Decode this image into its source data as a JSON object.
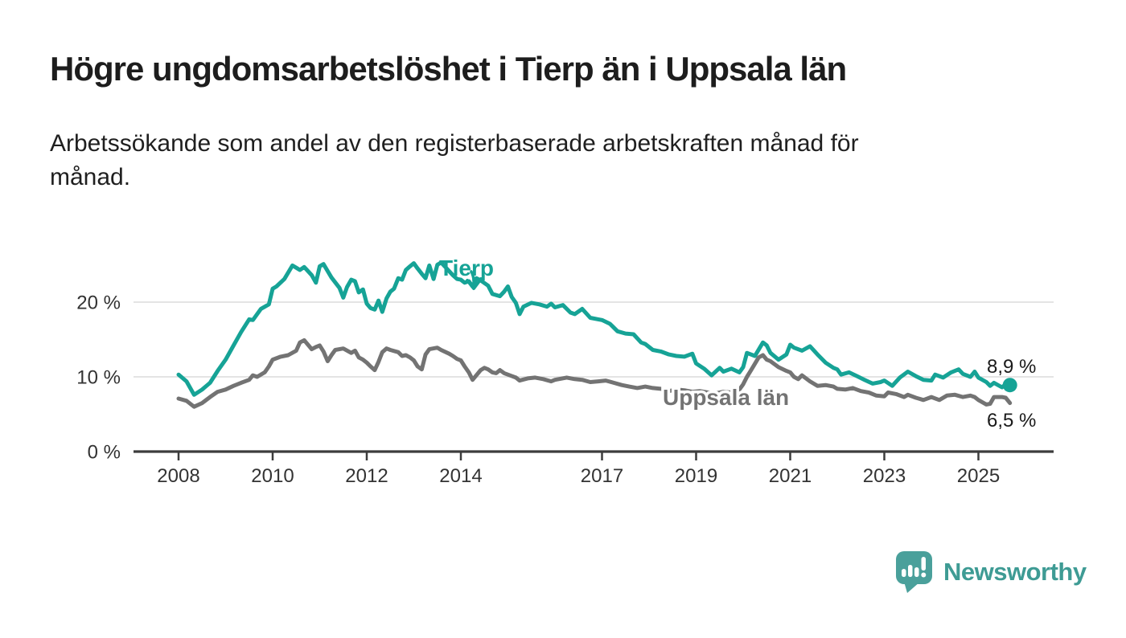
{
  "header": {
    "title": "Högre ungdomsarbetslöshet i Tierp än i Uppsala län",
    "subtitle_line1": "Arbetssökande som andel av den registerbaserade arbetskraften månad för",
    "subtitle_line2": "månad."
  },
  "footer": {
    "brand": "Newsworthy",
    "logo_icon": "newsworthy-speech-bubble-bar-chart-icon"
  },
  "colors": {
    "tierp": "#16A396",
    "uppsala": "#737373",
    "grid": "#DBDBDB",
    "axis": "#3C3C3C",
    "tick_text": "#333333",
    "end_label_text": "#1A1A1A",
    "logo_bubble": "#4AA09B",
    "wordmark": "#3E9B94",
    "background": "#FFFFFF"
  },
  "chart_data": {
    "type": "line",
    "title": "",
    "xlabel": "",
    "ylabel": "",
    "unit": "%",
    "grid": "horizontal-only",
    "legend_position": "inline-labels-on-lines",
    "xlim": [
      2007.05,
      2026.6
    ],
    "ylim": [
      0,
      27
    ],
    "x_ticks": [
      {
        "value": 2008,
        "label": "2008"
      },
      {
        "value": 2010,
        "label": "2010"
      },
      {
        "value": 2012,
        "label": "2012"
      },
      {
        "value": 2014,
        "label": "2014"
      },
      {
        "value": 2017,
        "label": "2017"
      },
      {
        "value": 2019,
        "label": "2019"
      },
      {
        "value": 2021,
        "label": "2021"
      },
      {
        "value": 2023,
        "label": "2023"
      },
      {
        "value": 2025,
        "label": "2025"
      }
    ],
    "y_ticks": [
      {
        "value": 0,
        "label": "0 %"
      },
      {
        "value": 10,
        "label": "10 %"
      },
      {
        "value": 20,
        "label": "20 %"
      }
    ],
    "series": [
      {
        "name": "Tierp",
        "color_key": "tierp",
        "end_label": "8,9 %",
        "end_dot": true,
        "points": [
          [
            2008.0,
            10.3
          ],
          [
            2008.17,
            9.4
          ],
          [
            2008.33,
            7.6
          ],
          [
            2008.5,
            8.3
          ],
          [
            2008.67,
            9.2
          ],
          [
            2008.83,
            10.8
          ],
          [
            2009.0,
            12.3
          ],
          [
            2009.17,
            14.2
          ],
          [
            2009.33,
            16.0
          ],
          [
            2009.5,
            17.7
          ],
          [
            2009.58,
            17.6
          ],
          [
            2009.75,
            19.1
          ],
          [
            2009.92,
            19.7
          ],
          [
            2010.0,
            21.8
          ],
          [
            2010.08,
            22.1
          ],
          [
            2010.25,
            23.1
          ],
          [
            2010.42,
            24.9
          ],
          [
            2010.5,
            24.6
          ],
          [
            2010.58,
            24.3
          ],
          [
            2010.67,
            24.7
          ],
          [
            2010.83,
            23.6
          ],
          [
            2010.92,
            22.6
          ],
          [
            2011.0,
            24.8
          ],
          [
            2011.08,
            25.1
          ],
          [
            2011.25,
            23.3
          ],
          [
            2011.42,
            21.9
          ],
          [
            2011.5,
            20.6
          ],
          [
            2011.58,
            22.0
          ],
          [
            2011.67,
            23.0
          ],
          [
            2011.75,
            22.8
          ],
          [
            2011.83,
            21.3
          ],
          [
            2011.92,
            21.7
          ],
          [
            2012.0,
            19.8
          ],
          [
            2012.08,
            19.2
          ],
          [
            2012.17,
            19.0
          ],
          [
            2012.25,
            20.2
          ],
          [
            2012.33,
            18.7
          ],
          [
            2012.42,
            20.5
          ],
          [
            2012.5,
            21.4
          ],
          [
            2012.58,
            21.8
          ],
          [
            2012.67,
            23.2
          ],
          [
            2012.75,
            23.0
          ],
          [
            2012.83,
            24.3
          ],
          [
            2012.92,
            24.8
          ],
          [
            2013.0,
            25.2
          ],
          [
            2013.08,
            24.5
          ],
          [
            2013.17,
            23.8
          ],
          [
            2013.25,
            23.2
          ],
          [
            2013.33,
            24.9
          ],
          [
            2013.42,
            23.1
          ],
          [
            2013.5,
            25.0
          ],
          [
            2013.58,
            25.3
          ],
          [
            2013.67,
            24.7
          ],
          [
            2013.83,
            23.6
          ],
          [
            2013.92,
            23.1
          ],
          [
            2014.0,
            23.0
          ],
          [
            2014.08,
            22.6
          ],
          [
            2014.17,
            22.8
          ],
          [
            2014.25,
            22.1
          ],
          [
            2014.33,
            23.2
          ],
          [
            2014.42,
            22.9
          ],
          [
            2014.58,
            22.2
          ],
          [
            2014.67,
            21.1
          ],
          [
            2014.83,
            20.8
          ],
          [
            2014.92,
            21.4
          ],
          [
            2015.0,
            22.1
          ],
          [
            2015.08,
            20.7
          ],
          [
            2015.17,
            19.9
          ],
          [
            2015.25,
            18.4
          ],
          [
            2015.33,
            19.4
          ],
          [
            2015.5,
            19.9
          ],
          [
            2015.67,
            19.7
          ],
          [
            2015.83,
            19.4
          ],
          [
            2015.92,
            19.8
          ],
          [
            2016.0,
            19.3
          ],
          [
            2016.17,
            19.6
          ],
          [
            2016.33,
            18.6
          ],
          [
            2016.42,
            18.4
          ],
          [
            2016.58,
            19.1
          ],
          [
            2016.75,
            17.9
          ],
          [
            2016.92,
            17.7
          ],
          [
            2017.0,
            17.6
          ],
          [
            2017.17,
            17.1
          ],
          [
            2017.33,
            16.1
          ],
          [
            2017.5,
            15.8
          ],
          [
            2017.67,
            15.7
          ],
          [
            2017.83,
            14.6
          ],
          [
            2017.92,
            14.4
          ],
          [
            2018.08,
            13.6
          ],
          [
            2018.25,
            13.4
          ],
          [
            2018.42,
            13.0
          ],
          [
            2018.58,
            12.8
          ],
          [
            2018.75,
            12.7
          ],
          [
            2018.92,
            13.1
          ],
          [
            2019.0,
            11.8
          ],
          [
            2019.17,
            11.1
          ],
          [
            2019.33,
            10.2
          ],
          [
            2019.5,
            11.2
          ],
          [
            2019.58,
            10.7
          ],
          [
            2019.75,
            11.1
          ],
          [
            2019.92,
            10.6
          ],
          [
            2020.0,
            11.3
          ],
          [
            2020.08,
            13.2
          ],
          [
            2020.25,
            12.8
          ],
          [
            2020.42,
            14.6
          ],
          [
            2020.5,
            14.2
          ],
          [
            2020.58,
            13.2
          ],
          [
            2020.75,
            12.3
          ],
          [
            2020.92,
            13.0
          ],
          [
            2021.0,
            14.3
          ],
          [
            2021.08,
            13.9
          ],
          [
            2021.25,
            13.5
          ],
          [
            2021.42,
            14.1
          ],
          [
            2021.58,
            13.0
          ],
          [
            2021.75,
            11.9
          ],
          [
            2021.92,
            11.2
          ],
          [
            2022.0,
            11.0
          ],
          [
            2022.08,
            10.3
          ],
          [
            2022.25,
            10.6
          ],
          [
            2022.42,
            10.1
          ],
          [
            2022.58,
            9.6
          ],
          [
            2022.75,
            9.1
          ],
          [
            2022.92,
            9.3
          ],
          [
            2023.0,
            9.5
          ],
          [
            2023.17,
            8.8
          ],
          [
            2023.33,
            9.9
          ],
          [
            2023.5,
            10.7
          ],
          [
            2023.67,
            10.1
          ],
          [
            2023.83,
            9.6
          ],
          [
            2024.0,
            9.5
          ],
          [
            2024.08,
            10.3
          ],
          [
            2024.25,
            9.9
          ],
          [
            2024.42,
            10.6
          ],
          [
            2024.58,
            11.0
          ],
          [
            2024.67,
            10.4
          ],
          [
            2024.83,
            10.0
          ],
          [
            2024.92,
            10.7
          ],
          [
            2025.0,
            9.9
          ],
          [
            2025.17,
            9.3
          ],
          [
            2025.25,
            8.8
          ],
          [
            2025.33,
            9.2
          ],
          [
            2025.5,
            8.6
          ],
          [
            2025.58,
            9.0
          ],
          [
            2025.67,
            8.9
          ]
        ]
      },
      {
        "name": "Uppsala län",
        "color_key": "uppsala",
        "end_label": "6,5 %",
        "end_dot": false,
        "points": [
          [
            2008.0,
            7.1
          ],
          [
            2008.17,
            6.8
          ],
          [
            2008.33,
            6.0
          ],
          [
            2008.5,
            6.5
          ],
          [
            2008.67,
            7.3
          ],
          [
            2008.83,
            8.0
          ],
          [
            2009.0,
            8.3
          ],
          [
            2009.17,
            8.8
          ],
          [
            2009.33,
            9.2
          ],
          [
            2009.5,
            9.6
          ],
          [
            2009.58,
            10.2
          ],
          [
            2009.67,
            10.0
          ],
          [
            2009.83,
            10.6
          ],
          [
            2009.92,
            11.4
          ],
          [
            2010.0,
            12.3
          ],
          [
            2010.17,
            12.7
          ],
          [
            2010.33,
            12.9
          ],
          [
            2010.5,
            13.5
          ],
          [
            2010.58,
            14.6
          ],
          [
            2010.67,
            14.9
          ],
          [
            2010.75,
            14.3
          ],
          [
            2010.83,
            13.7
          ],
          [
            2010.92,
            14.0
          ],
          [
            2011.0,
            14.2
          ],
          [
            2011.08,
            13.4
          ],
          [
            2011.17,
            12.1
          ],
          [
            2011.25,
            12.9
          ],
          [
            2011.33,
            13.6
          ],
          [
            2011.5,
            13.8
          ],
          [
            2011.67,
            13.2
          ],
          [
            2011.75,
            13.5
          ],
          [
            2011.83,
            12.6
          ],
          [
            2011.92,
            12.3
          ],
          [
            2012.0,
            11.9
          ],
          [
            2012.08,
            11.4
          ],
          [
            2012.17,
            10.9
          ],
          [
            2012.25,
            12.0
          ],
          [
            2012.33,
            13.3
          ],
          [
            2012.42,
            13.8
          ],
          [
            2012.5,
            13.6
          ],
          [
            2012.67,
            13.3
          ],
          [
            2012.75,
            12.8
          ],
          [
            2012.83,
            12.9
          ],
          [
            2012.92,
            12.6
          ],
          [
            2013.0,
            12.2
          ],
          [
            2013.08,
            11.4
          ],
          [
            2013.17,
            11.0
          ],
          [
            2013.25,
            13.0
          ],
          [
            2013.33,
            13.7
          ],
          [
            2013.5,
            13.9
          ],
          [
            2013.58,
            13.6
          ],
          [
            2013.75,
            13.1
          ],
          [
            2013.83,
            12.8
          ],
          [
            2013.92,
            12.4
          ],
          [
            2014.0,
            12.2
          ],
          [
            2014.08,
            11.4
          ],
          [
            2014.17,
            10.6
          ],
          [
            2014.25,
            9.6
          ],
          [
            2014.42,
            10.9
          ],
          [
            2014.5,
            11.2
          ],
          [
            2014.58,
            11.0
          ],
          [
            2014.67,
            10.6
          ],
          [
            2014.75,
            10.5
          ],
          [
            2014.83,
            10.9
          ],
          [
            2014.92,
            10.5
          ],
          [
            2015.0,
            10.3
          ],
          [
            2015.17,
            9.9
          ],
          [
            2015.25,
            9.5
          ],
          [
            2015.42,
            9.8
          ],
          [
            2015.58,
            9.9
          ],
          [
            2015.75,
            9.7
          ],
          [
            2015.92,
            9.4
          ],
          [
            2016.0,
            9.6
          ],
          [
            2016.25,
            9.9
          ],
          [
            2016.42,
            9.7
          ],
          [
            2016.58,
            9.6
          ],
          [
            2016.75,
            9.3
          ],
          [
            2016.92,
            9.4
          ],
          [
            2017.08,
            9.5
          ],
          [
            2017.25,
            9.2
          ],
          [
            2017.42,
            8.9
          ],
          [
            2017.58,
            8.7
          ],
          [
            2017.75,
            8.5
          ],
          [
            2017.92,
            8.7
          ],
          [
            2018.08,
            8.5
          ],
          [
            2018.25,
            8.4
          ],
          [
            2018.42,
            8.1
          ],
          [
            2018.58,
            8.3
          ],
          [
            2018.75,
            8.2
          ],
          [
            2018.92,
            8.0
          ],
          [
            2019.08,
            8.1
          ],
          [
            2019.25,
            7.9
          ],
          [
            2019.42,
            7.8
          ],
          [
            2019.58,
            8.0
          ],
          [
            2019.75,
            7.9
          ],
          [
            2019.92,
            8.3
          ],
          [
            2020.0,
            9.0
          ],
          [
            2020.08,
            10.0
          ],
          [
            2020.17,
            10.9
          ],
          [
            2020.33,
            12.6
          ],
          [
            2020.42,
            12.9
          ],
          [
            2020.5,
            12.3
          ],
          [
            2020.58,
            12.1
          ],
          [
            2020.75,
            11.3
          ],
          [
            2020.92,
            10.8
          ],
          [
            2021.0,
            10.6
          ],
          [
            2021.08,
            10.0
          ],
          [
            2021.17,
            9.7
          ],
          [
            2021.25,
            10.2
          ],
          [
            2021.42,
            9.4
          ],
          [
            2021.58,
            8.8
          ],
          [
            2021.75,
            8.9
          ],
          [
            2021.92,
            8.7
          ],
          [
            2022.0,
            8.4
          ],
          [
            2022.17,
            8.3
          ],
          [
            2022.33,
            8.5
          ],
          [
            2022.5,
            8.1
          ],
          [
            2022.67,
            7.9
          ],
          [
            2022.83,
            7.5
          ],
          [
            2023.0,
            7.4
          ],
          [
            2023.08,
            7.9
          ],
          [
            2023.25,
            7.7
          ],
          [
            2023.42,
            7.3
          ],
          [
            2023.5,
            7.6
          ],
          [
            2023.67,
            7.2
          ],
          [
            2023.83,
            6.9
          ],
          [
            2024.0,
            7.3
          ],
          [
            2024.17,
            6.9
          ],
          [
            2024.33,
            7.5
          ],
          [
            2024.5,
            7.6
          ],
          [
            2024.67,
            7.3
          ],
          [
            2024.83,
            7.5
          ],
          [
            2024.92,
            7.3
          ],
          [
            2025.0,
            6.9
          ],
          [
            2025.17,
            6.3
          ],
          [
            2025.25,
            6.4
          ],
          [
            2025.33,
            7.3
          ],
          [
            2025.5,
            7.3
          ],
          [
            2025.58,
            7.2
          ],
          [
            2025.67,
            6.5
          ]
        ]
      }
    ]
  }
}
